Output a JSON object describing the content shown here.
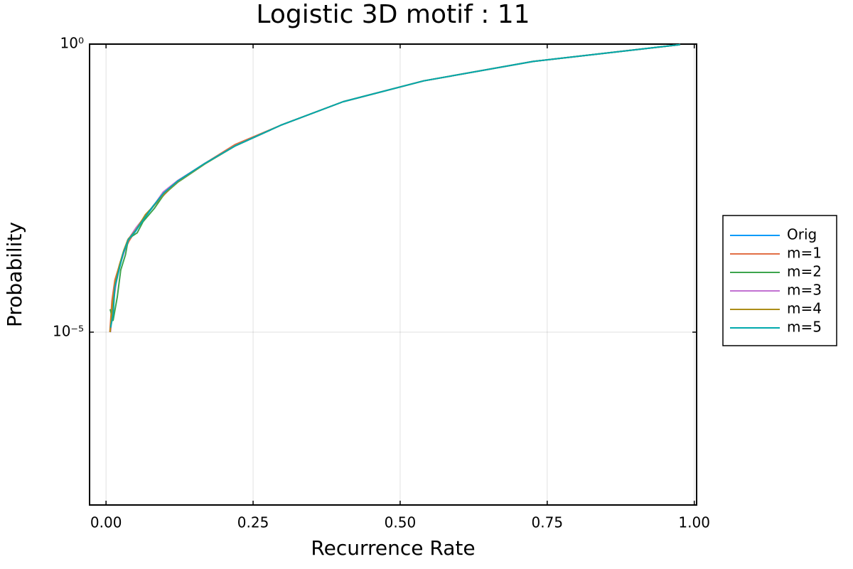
{
  "chart_data": {
    "type": "line",
    "title": "Logistic 3D motif : 11",
    "xlabel": "Recurrence Rate",
    "ylabel": "Probability",
    "xlim": [
      -0.028,
      1.004
    ],
    "ylim": [
      1e-08,
      1
    ],
    "ylog": true,
    "grid": true,
    "xticks": [
      {
        "value": 0,
        "label": "0.00"
      },
      {
        "value": 0.25,
        "label": "0.25"
      },
      {
        "value": 0.5,
        "label": "0.50"
      },
      {
        "value": 0.75,
        "label": "0.75"
      },
      {
        "value": 1,
        "label": "1.00"
      }
    ],
    "yticks": [
      {
        "value": 1,
        "label": "10⁰"
      },
      {
        "value": 1e-05,
        "label": "10⁻⁵"
      }
    ],
    "legend": "outside-right",
    "series": [
      {
        "name": "Orig",
        "color": "#009af9",
        "x": [
          0.0072,
          0.011,
          0.016,
          0.023,
          0.03,
          0.037,
          0.05,
          0.062,
          0.08,
          0.098,
          0.122,
          0.168,
          0.219,
          0.297,
          0.403,
          0.54,
          0.726,
          0.976
        ],
        "values": [
          1e-05,
          2.9e-05,
          6.8e-05,
          0.00014,
          0.00024,
          0.0004,
          0.00056,
          0.00087,
          0.0015,
          0.0026,
          0.0042,
          0.0085,
          0.017,
          0.039,
          0.1,
          0.23,
          0.5,
          0.98
        ]
      },
      {
        "name": "m=1",
        "color": "#e26f46",
        "x": [
          0.0065,
          0.01,
          0.015,
          0.024,
          0.031,
          0.039,
          0.052,
          0.065,
          0.082,
          0.1,
          0.122,
          0.168,
          0.219,
          0.297,
          0.403,
          0.54,
          0.726,
          0.976
        ],
        "values": [
          1e-05,
          3.5e-05,
          8e-05,
          0.00016,
          0.00026,
          0.00038,
          0.00062,
          0.001,
          0.0016,
          0.0025,
          0.0042,
          0.0085,
          0.018,
          0.039,
          0.1,
          0.23,
          0.5,
          0.98
        ]
      },
      {
        "name": "m=2",
        "color": "#3da44d",
        "x": [
          0.007,
          0.012,
          0.019,
          0.025,
          0.033,
          0.038,
          0.053,
          0.063,
          0.082,
          0.099,
          0.122,
          0.168,
          0.219,
          0.297,
          0.403,
          0.54,
          0.726,
          0.976
        ],
        "values": [
          2.5e-05,
          1.6e-05,
          4e-05,
          0.00012,
          0.00022,
          0.00042,
          0.00053,
          0.00083,
          0.0014,
          0.0025,
          0.004,
          0.0083,
          0.017,
          0.039,
          0.1,
          0.23,
          0.5,
          0.98
        ]
      },
      {
        "name": "m=3",
        "color": "#c271d2",
        "x": [
          0.0075,
          0.012,
          0.017,
          0.024,
          0.031,
          0.038,
          0.051,
          0.064,
          0.085,
          0.097,
          0.122,
          0.168,
          0.219,
          0.297,
          0.403,
          0.54,
          0.726,
          0.976
        ],
        "values": [
          1e-05,
          3e-05,
          7e-05,
          0.00015,
          0.00025,
          0.00041,
          0.00065,
          0.00095,
          0.0018,
          0.0027,
          0.0043,
          0.0085,
          0.017,
          0.039,
          0.1,
          0.23,
          0.5,
          0.98
        ]
      },
      {
        "name": "m=4",
        "color": "#ac8d18",
        "x": [
          0.007,
          0.011,
          0.016,
          0.023,
          0.03,
          0.037,
          0.051,
          0.067,
          0.082,
          0.1,
          0.122,
          0.168,
          0.219,
          0.297,
          0.403,
          0.54,
          0.726,
          0.976
        ],
        "values": [
          1e-05,
          3e-05,
          7.5e-05,
          0.00015,
          0.00026,
          0.0004,
          0.0006,
          0.0011,
          0.0016,
          0.0026,
          0.0041,
          0.0084,
          0.017,
          0.039,
          0.1,
          0.23,
          0.5,
          0.98
        ]
      },
      {
        "name": "m=5",
        "color": "#00a9ad",
        "x": [
          0.0078,
          0.012,
          0.015,
          0.022,
          0.029,
          0.038,
          0.049,
          0.062,
          0.079,
          0.098,
          0.122,
          0.168,
          0.219,
          0.297,
          0.403,
          0.54,
          0.726,
          0.976
        ],
        "values": [
          1.2e-05,
          2e-05,
          6e-05,
          0.00012,
          0.00023,
          0.0004,
          0.00055,
          0.00085,
          0.0015,
          0.0026,
          0.0042,
          0.0085,
          0.017,
          0.039,
          0.1,
          0.23,
          0.5,
          0.98
        ]
      }
    ]
  }
}
